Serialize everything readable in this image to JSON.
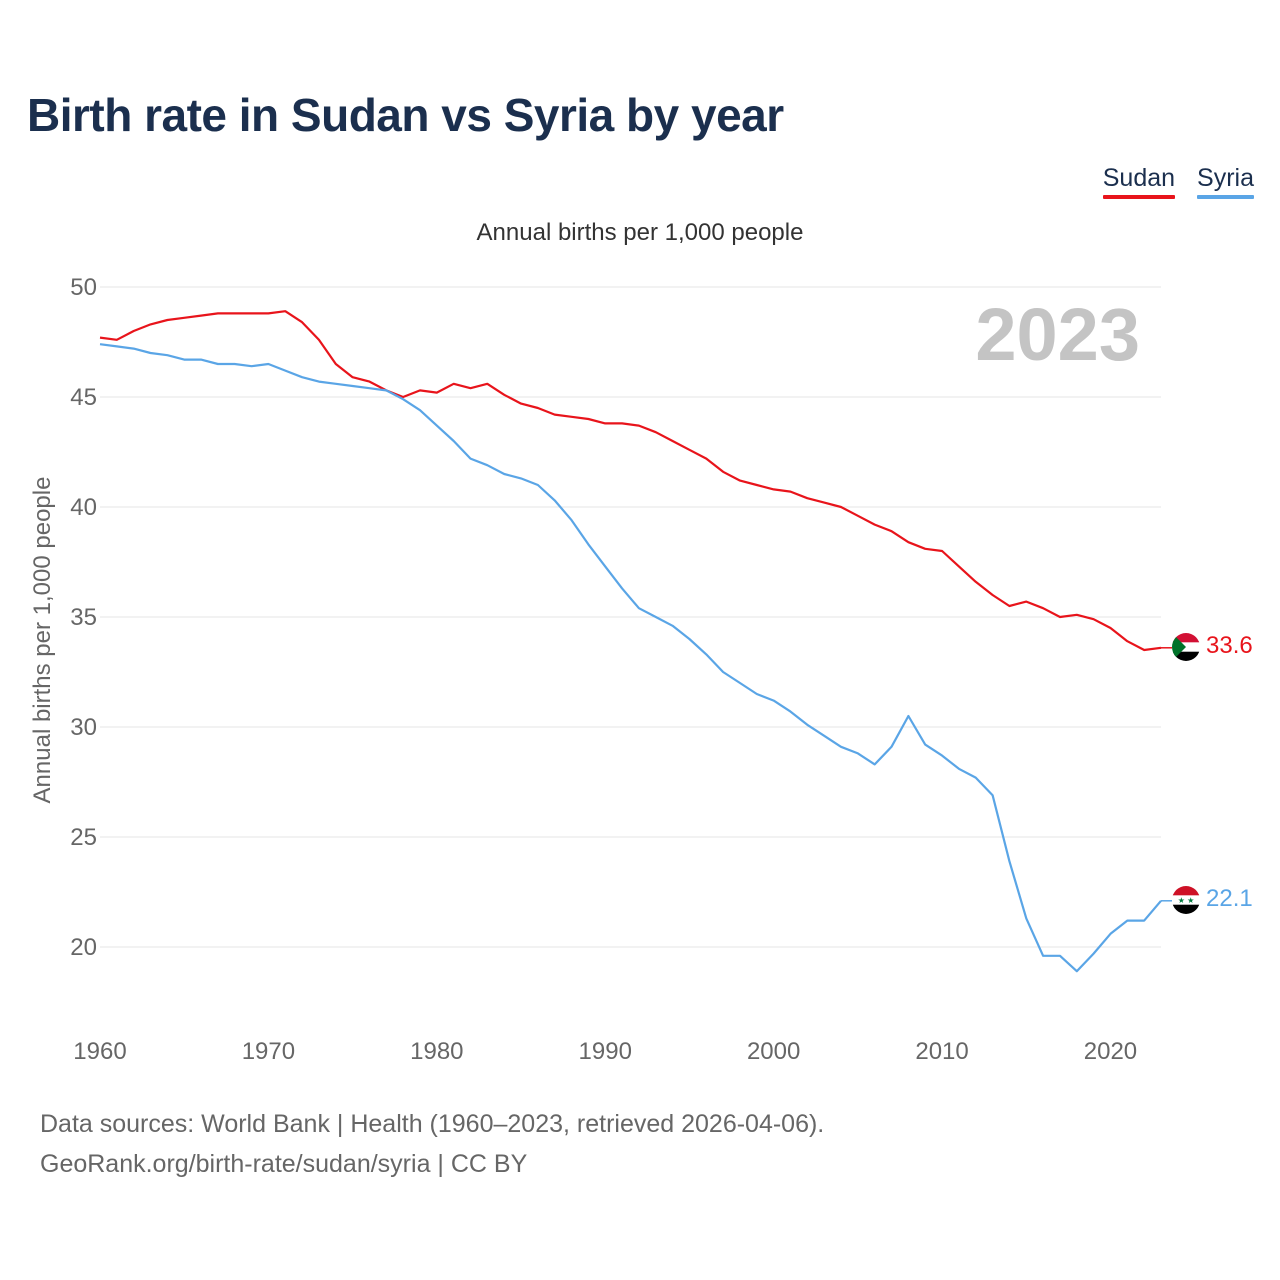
{
  "title": "Birth rate in Sudan vs Syria by year",
  "footer": {
    "line1": "Data sources: World Bank | Health (1960–2023, retrieved 2026-04-06).",
    "line2": "GeoRank.org/birth-rate/sudan/syria | CC BY"
  },
  "colors": {
    "sudan": "#e8141b",
    "syria": "#5aa5e6",
    "title": "#1b2f4e",
    "grid": "#e6e6e6",
    "axis_text": "#666666",
    "year_watermark": "#c4c4c4"
  },
  "chart_data": {
    "type": "line",
    "subtitle": "Annual births per 1,000 people",
    "ylabel": "Annual births per 1,000 people",
    "xlabel": "",
    "xlim": [
      1960,
      2023
    ],
    "ylim": [
      17,
      50
    ],
    "yticks": [
      20,
      25,
      30,
      35,
      40,
      45,
      50
    ],
    "xticks": [
      1960,
      1970,
      1980,
      1990,
      2000,
      2010,
      2020
    ],
    "grid": true,
    "legend_position": "top-right",
    "current_year_label": "2023",
    "x": [
      1960,
      1961,
      1962,
      1963,
      1964,
      1965,
      1966,
      1967,
      1968,
      1969,
      1970,
      1971,
      1972,
      1973,
      1974,
      1975,
      1976,
      1977,
      1978,
      1979,
      1980,
      1981,
      1982,
      1983,
      1984,
      1985,
      1986,
      1987,
      1988,
      1989,
      1990,
      1991,
      1992,
      1993,
      1994,
      1995,
      1996,
      1997,
      1998,
      1999,
      2000,
      2001,
      2002,
      2003,
      2004,
      2005,
      2006,
      2007,
      2008,
      2009,
      2010,
      2011,
      2012,
      2013,
      2014,
      2015,
      2016,
      2017,
      2018,
      2019,
      2020,
      2021,
      2022,
      2023
    ],
    "series": [
      {
        "name": "Sudan",
        "color": "#e8141b",
        "end_label": "33.6",
        "flag": "sudan-flag",
        "values": [
          47.7,
          47.6,
          48.0,
          48.3,
          48.5,
          48.6,
          48.7,
          48.8,
          48.8,
          48.8,
          48.8,
          48.9,
          48.4,
          47.6,
          46.5,
          45.9,
          45.7,
          45.3,
          45.0,
          45.3,
          45.2,
          45.6,
          45.4,
          45.6,
          45.1,
          44.7,
          44.5,
          44.2,
          44.1,
          44.0,
          43.8,
          43.8,
          43.7,
          43.4,
          43.0,
          42.6,
          42.2,
          41.6,
          41.2,
          41.0,
          40.8,
          40.7,
          40.4,
          40.2,
          40.0,
          39.6,
          39.2,
          38.9,
          38.4,
          38.1,
          38.0,
          37.3,
          36.6,
          36.0,
          35.5,
          35.7,
          35.4,
          35.0,
          35.1,
          34.9,
          34.5,
          33.9,
          33.5,
          33.6
        ]
      },
      {
        "name": "Syria",
        "color": "#5aa5e6",
        "end_label": "22.1",
        "flag": "syria-flag",
        "values": [
          47.4,
          47.3,
          47.2,
          47.0,
          46.9,
          46.7,
          46.7,
          46.5,
          46.5,
          46.4,
          46.5,
          46.2,
          45.9,
          45.7,
          45.6,
          45.5,
          45.4,
          45.3,
          44.9,
          44.4,
          43.7,
          43.0,
          42.2,
          41.9,
          41.5,
          41.3,
          41.0,
          40.3,
          39.4,
          38.3,
          37.3,
          36.3,
          35.4,
          35.0,
          34.6,
          34.0,
          33.3,
          32.5,
          32.0,
          31.5,
          31.2,
          30.7,
          30.1,
          29.6,
          29.1,
          28.8,
          28.3,
          29.1,
          30.5,
          29.2,
          28.7,
          28.1,
          27.7,
          26.9,
          23.9,
          21.3,
          19.6,
          19.6,
          18.9,
          19.7,
          20.6,
          21.2,
          21.2,
          22.1
        ]
      }
    ]
  }
}
